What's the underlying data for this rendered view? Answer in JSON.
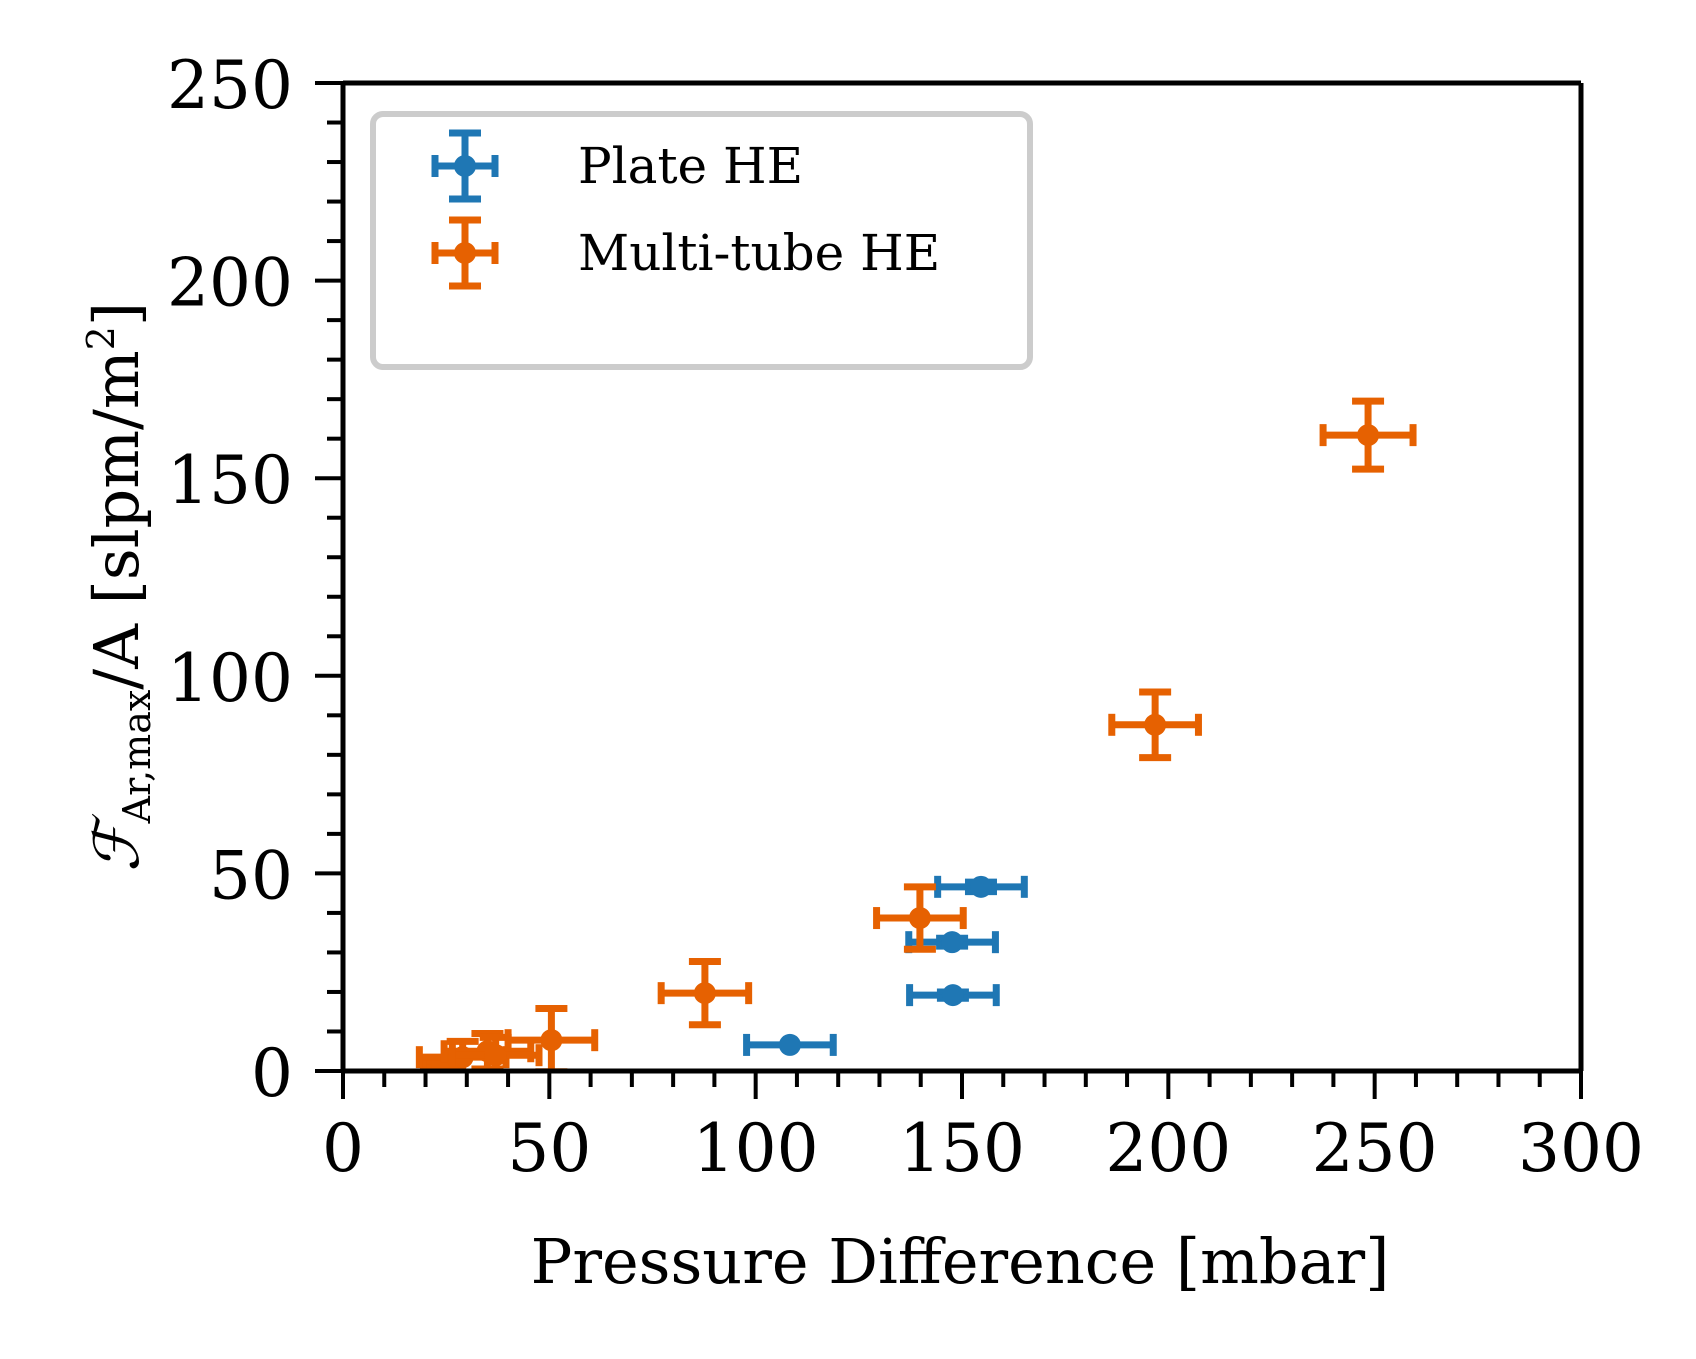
{
  "chart_data": {
    "type": "scatter",
    "title": "",
    "xlabel": "Pressure Difference [mbar]",
    "ylabel": {
      "main": "ℱ",
      "subscript": "Ar,max",
      "rest": "/A [slpm/m",
      "superscript": "2",
      "close": "]"
    },
    "xlim": [
      0,
      300
    ],
    "ylim": [
      0,
      250
    ],
    "xticks": [
      0,
      50,
      100,
      150,
      200,
      250,
      300
    ],
    "xtick_labels": [
      "0",
      "50",
      "100",
      "150",
      "200",
      "250",
      "300"
    ],
    "yticks": [
      0,
      50,
      100,
      150,
      200,
      250
    ],
    "ytick_labels": [
      "0",
      "50",
      "100",
      "150",
      "200",
      "250"
    ],
    "x_minor_step": 10,
    "y_minor_step": 10,
    "grid": false,
    "legend_position": "top-left",
    "series": [
      {
        "name": "Plate HE",
        "color": "#1f77b4",
        "points": [
          {
            "x": 108.3,
            "y": 6.6,
            "xerr": 10.5,
            "yerr": 0.5
          },
          {
            "x": 147.8,
            "y": 19.2,
            "xerr": 10.5,
            "yerr": 0.8
          },
          {
            "x": 147.6,
            "y": 32.6,
            "xerr": 10.5,
            "yerr": 1.0
          },
          {
            "x": 154.6,
            "y": 46.6,
            "xerr": 10.5,
            "yerr": 1.2
          }
        ]
      },
      {
        "name": "Multi-tube HE",
        "color": "#e66101",
        "points": [
          {
            "x": 24.0,
            "y": 1.5,
            "xerr": 4.5,
            "yerr": 1.0
          },
          {
            "x": 29.0,
            "y": 3.5,
            "xerr": 10.5,
            "yerr": 4.0
          },
          {
            "x": 35.0,
            "y": 5.0,
            "xerr": 10.5,
            "yerr": 4.5
          },
          {
            "x": 37.0,
            "y": 4.0,
            "xerr": 10.5,
            "yerr": 4.5
          },
          {
            "x": 50.5,
            "y": 7.8,
            "xerr": 10.5,
            "yerr": 8.0
          },
          {
            "x": 87.7,
            "y": 19.7,
            "xerr": 10.6,
            "yerr": 8.0
          },
          {
            "x": 139.8,
            "y": 38.7,
            "xerr": 10.5,
            "yerr": 7.9
          },
          {
            "x": 196.8,
            "y": 87.6,
            "xerr": 10.5,
            "yerr": 8.3
          },
          {
            "x": 248.4,
            "y": 160.9,
            "xerr": 10.9,
            "yerr": 8.6
          }
        ]
      }
    ]
  }
}
